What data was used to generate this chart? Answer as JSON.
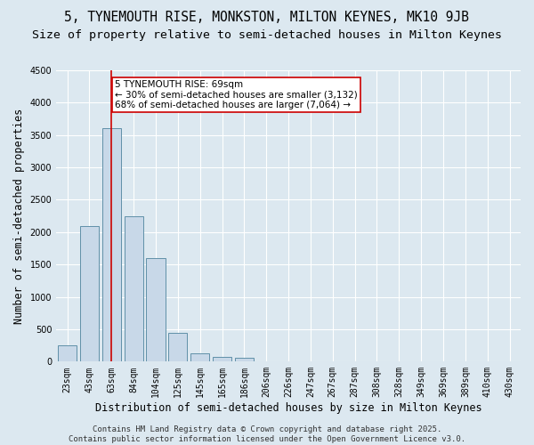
{
  "title_line1": "5, TYNEMOUTH RISE, MONKSTON, MILTON KEYNES, MK10 9JB",
  "title_line2": "Size of property relative to semi-detached houses in Milton Keynes",
  "xlabel": "Distribution of semi-detached houses by size in Milton Keynes",
  "ylabel": "Number of semi-detached properties",
  "footer": "Contains HM Land Registry data © Crown copyright and database right 2025.\nContains public sector information licensed under the Open Government Licence v3.0.",
  "categories": [
    "23sqm",
    "43sqm",
    "63sqm",
    "84sqm",
    "104sqm",
    "125sqm",
    "145sqm",
    "165sqm",
    "186sqm",
    "206sqm",
    "226sqm",
    "247sqm",
    "267sqm",
    "287sqm",
    "308sqm",
    "328sqm",
    "349sqm",
    "369sqm",
    "389sqm",
    "410sqm",
    "430sqm"
  ],
  "values": [
    250,
    2100,
    3600,
    2250,
    1600,
    450,
    130,
    80,
    60,
    5,
    3,
    2,
    1,
    1,
    0,
    0,
    0,
    0,
    0,
    0,
    0
  ],
  "bar_color": "#c8d8e8",
  "bar_edge_color": "#6090a8",
  "highlight_index": 2,
  "highlight_color": "#cc0000",
  "annotation_text": "5 TYNEMOUTH RISE: 69sqm\n← 30% of semi-detached houses are smaller (3,132)\n68% of semi-detached houses are larger (7,064) →",
  "annotation_box_color": "#ffffff",
  "annotation_box_edge": "#cc0000",
  "ylim": [
    0,
    4500
  ],
  "yticks": [
    0,
    500,
    1000,
    1500,
    2000,
    2500,
    3000,
    3500,
    4000,
    4500
  ],
  "background_color": "#dce8f0",
  "plot_background": "#dce8f0",
  "grid_color": "#ffffff",
  "title_fontsize": 10.5,
  "subtitle_fontsize": 9.5,
  "axis_label_fontsize": 8.5,
  "tick_fontsize": 7,
  "footer_fontsize": 6.5,
  "annotation_fontsize": 7.5
}
